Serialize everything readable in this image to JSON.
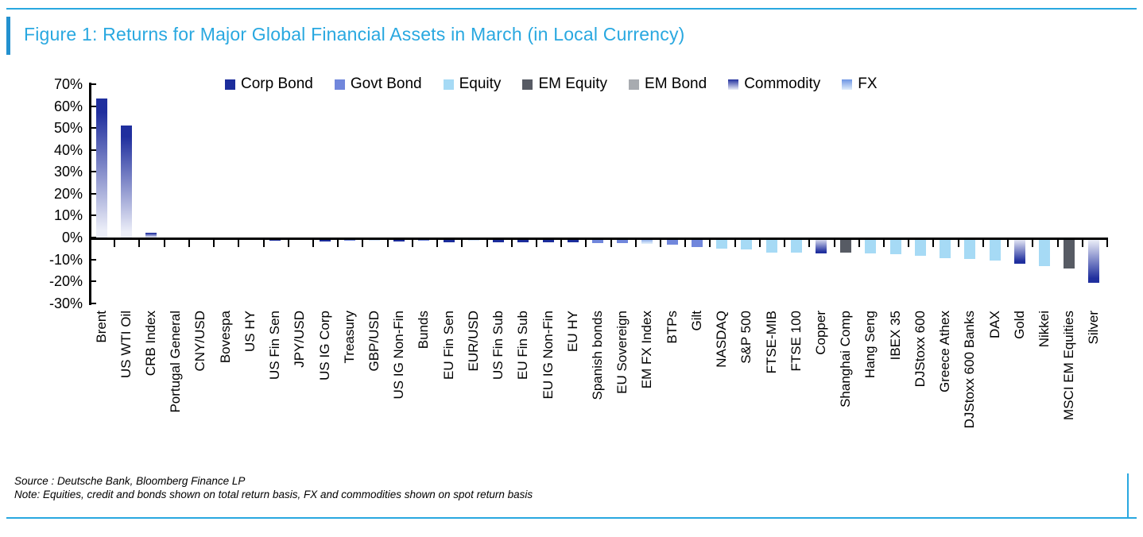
{
  "figure": {
    "title": "Figure 1: Returns for Major Global Financial Assets in March (in Local Currency)",
    "source_line": "Source : Deutsche Bank, Bloomberg Finance LP",
    "note_line": "Note: Equities, credit and bonds shown on total return basis, FX and commodities shown on spot return basis"
  },
  "colors": {
    "accent": "#29a8e0",
    "left_accent": "#2391cf",
    "axis": "#000000",
    "corp_bond": {
      "fill": "#1c2d9c"
    },
    "govt_bond": {
      "fill": "#7187dc"
    },
    "equity": {
      "fill": "#a6daf5"
    },
    "em_equity": {
      "fill": "#575b64"
    },
    "em_bond": {
      "fill": "#a8abb0"
    },
    "commodity": {
      "gradient": [
        "#202f9e",
        "#eceef8"
      ],
      "dark_at_zero": false
    },
    "fx": {
      "gradient": [
        "#6d95e3",
        "#e0edfb"
      ],
      "dark_at_zero": true
    }
  },
  "chart_data": {
    "type": "bar",
    "title": "Returns for Major Global Financial Assets in March (in Local Currency)",
    "xlabel": "",
    "ylabel": "",
    "ylim": [
      -30,
      70
    ],
    "yticks": [
      70,
      60,
      50,
      40,
      30,
      20,
      10,
      0,
      -10,
      -20,
      -30
    ],
    "ytick_suffix": "%",
    "grid": false,
    "legend_position": "top",
    "legend": [
      {
        "label": "Corp Bond",
        "key": "corp_bond"
      },
      {
        "label": "Govt Bond",
        "key": "govt_bond"
      },
      {
        "label": "Equity",
        "key": "equity"
      },
      {
        "label": "EM Equity",
        "key": "em_equity"
      },
      {
        "label": "EM Bond",
        "key": "em_bond"
      },
      {
        "label": "Commodity",
        "key": "commodity"
      },
      {
        "label": "FX",
        "key": "fx"
      }
    ],
    "categories": [
      "Brent",
      "US WTI Oil",
      "CRB Index",
      "Portugal General",
      "CNY/USD",
      "Bovespa",
      "US HY",
      "US Fin Sen",
      "JPY/USD",
      "US IG Corp",
      "Treasury",
      "GBP/USD",
      "US IG Non-Fin",
      "Bunds",
      "EU Fin Sen",
      "EUR/USD",
      "US Fin Sub",
      "EU Fin Sub",
      "EU IG Non-Fin",
      "EU HY",
      "Spanish bonds",
      "EU Sovereign",
      "EM FX Index",
      "BTPs",
      "Gilt",
      "NASDAQ",
      "S&P 500",
      "FTSE-MIB",
      "FTSE 100",
      "Copper",
      "Shanghai Comp",
      "Hang Seng",
      "IBEX 35",
      "DJStoxx 600",
      "Greece Athex",
      "DJStoxx 600 Banks",
      "DAX",
      "Gold",
      "Nikkei",
      "MSCI EM Equities",
      "Silver"
    ],
    "values": [
      63.5,
      51.0,
      2.0,
      0.1,
      -0.3,
      -0.5,
      -1.2,
      -1.5,
      -1.2,
      -1.8,
      -1.5,
      -1.3,
      -1.8,
      -1.6,
      -2.0,
      -1.6,
      -2.2,
      -2.2,
      -2.3,
      -2.3,
      -2.4,
      -2.6,
      -2.8,
      -3.2,
      -4.3,
      -5.0,
      -5.4,
      -6.8,
      -6.9,
      -7.1,
      -7.0,
      -7.2,
      -7.7,
      -8.5,
      -9.3,
      -9.9,
      -10.4,
      -12.0,
      -13.2,
      -14.3,
      -20.5
    ],
    "types": [
      "commodity",
      "commodity",
      "commodity",
      "equity",
      "fx",
      "em_equity",
      "corp_bond",
      "corp_bond",
      "fx",
      "corp_bond",
      "govt_bond",
      "fx",
      "corp_bond",
      "govt_bond",
      "corp_bond",
      "fx",
      "corp_bond",
      "corp_bond",
      "corp_bond",
      "corp_bond",
      "govt_bond",
      "govt_bond",
      "fx",
      "govt_bond",
      "govt_bond",
      "equity",
      "equity",
      "equity",
      "equity",
      "commodity",
      "em_equity",
      "equity",
      "equity",
      "equity",
      "equity",
      "equity",
      "equity",
      "commodity",
      "equity",
      "em_equity",
      "commodity"
    ]
  }
}
